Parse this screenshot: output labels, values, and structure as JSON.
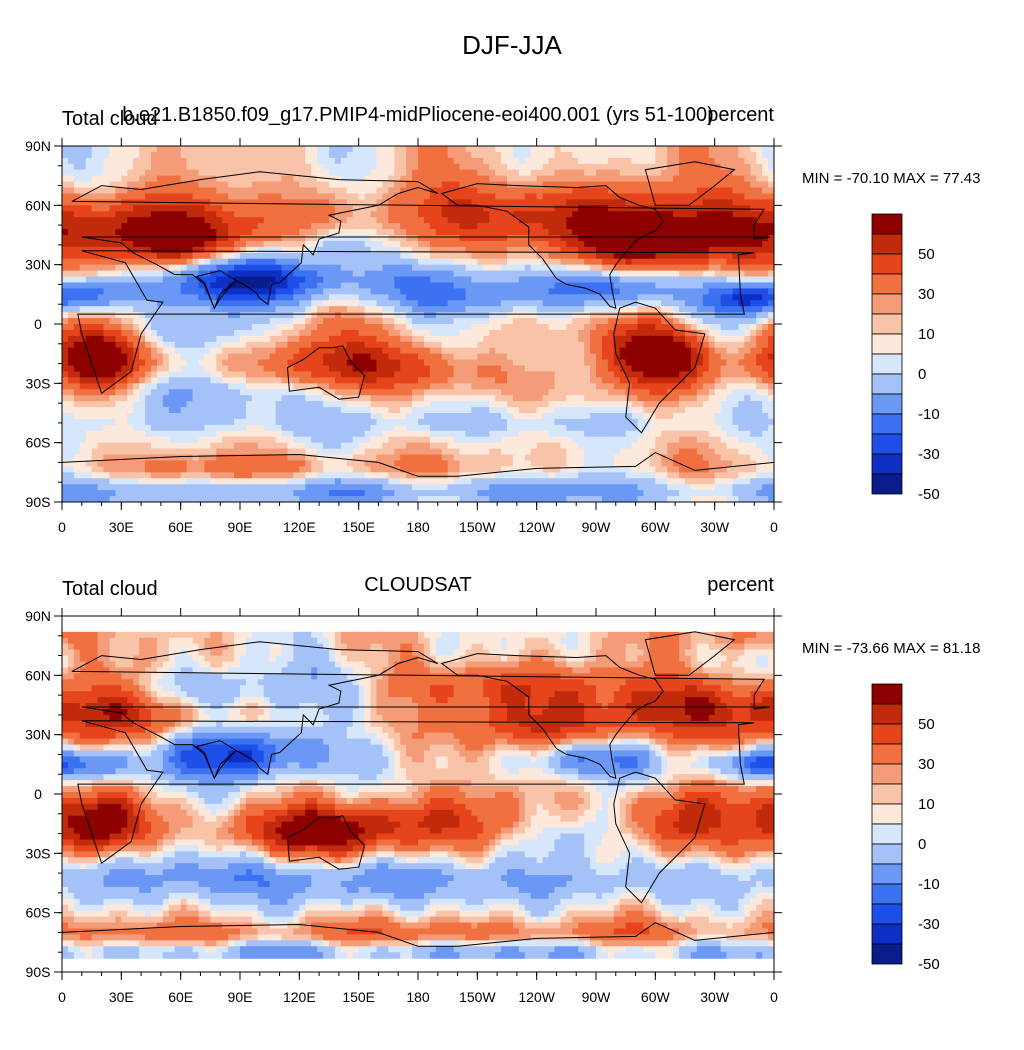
{
  "title": "DJF-JJA",
  "colors": [
    "#0a1c8c",
    "#0d2fc4",
    "#1e4fe8",
    "#3c72f2",
    "#6b98f4",
    "#a4c2f8",
    "#d6e6fb",
    "#fde9dc",
    "#f9c3a8",
    "#f49b78",
    "#f0703f",
    "#e6451c",
    "#c22a0c",
    "#8c0000"
  ],
  "colorbar_ticks": [
    "50",
    "30",
    "10",
    "0",
    "-10",
    "-30",
    "-50"
  ],
  "x_ticks": [
    "0",
    "30E",
    "60E",
    "90E",
    "120E",
    "150E",
    "180",
    "150W",
    "120W",
    "90W",
    "60W",
    "30W",
    "0"
  ],
  "y_ticks": [
    "90N",
    "60N",
    "30N",
    "0",
    "30S",
    "60S",
    "90S"
  ],
  "chart_data": [
    {
      "type": "heatmap",
      "subtitle_left": "Total cloud",
      "subtitle_center": "b.e21.B1850.f09_g17.PMIP4-midPliocene-eoi400.001 (yrs 51-100)",
      "subtitle_right": "percent",
      "min_max_text": "MIN = -70.10 MAX =  77.43",
      "min": -70.1,
      "max": 77.43,
      "xlim": [
        0,
        360
      ],
      "ylim": [
        -90,
        90
      ],
      "contour_levels": [
        -60,
        -50,
        -40,
        -30,
        -20,
        -10,
        -5,
        0,
        5,
        10,
        20,
        30,
        40,
        50,
        60
      ],
      "data_lat_range": [
        -90,
        90
      ]
    },
    {
      "type": "heatmap",
      "subtitle_left": "Total cloud",
      "subtitle_center": "CLOUDSAT",
      "subtitle_right": "percent",
      "min_max_text": "MIN = -73.66 MAX =  81.18",
      "min": -73.66,
      "max": 81.18,
      "xlim": [
        0,
        360
      ],
      "ylim": [
        -90,
        90
      ],
      "contour_levels": [
        -60,
        -50,
        -40,
        -30,
        -20,
        -10,
        -5,
        0,
        5,
        10,
        20,
        30,
        40,
        50,
        60
      ],
      "data_lat_range": [
        -82,
        82
      ]
    }
  ]
}
